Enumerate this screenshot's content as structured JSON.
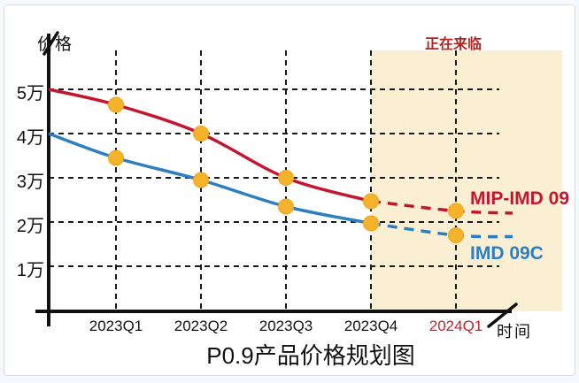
{
  "chart_data": {
    "type": "line",
    "title": "P0.9产品价格规划图",
    "ylabel": "价格",
    "xlabel": "时间",
    "annotation": {
      "text": "正在来临",
      "color": "#b3241f"
    },
    "y_ticks": [
      {
        "label": "5万",
        "value": 5
      },
      {
        "label": "4万",
        "value": 4
      },
      {
        "label": "3万",
        "value": 3
      },
      {
        "label": "2万",
        "value": 2
      },
      {
        "label": "1万",
        "value": 1
      }
    ],
    "ylim": [
      0,
      5.5
    ],
    "categories": [
      {
        "label": "2023Q1",
        "highlight": false
      },
      {
        "label": "2023Q2",
        "highlight": false
      },
      {
        "label": "2023Q3",
        "highlight": false
      },
      {
        "label": "2023Q4",
        "highlight": false
      },
      {
        "label": "2024Q1",
        "highlight": true
      }
    ],
    "highlight_color": "#c1272d",
    "grid": "dashed-black",
    "forecast_region": {
      "start_category": "2023Q4",
      "fill": "#faefd2"
    },
    "series": [
      {
        "name": "MIP-IMD 09",
        "color": "#c4162f",
        "axis_start_value": 5.0,
        "values": [
          4.65,
          4.0,
          3.0,
          2.47,
          2.25
        ],
        "dashed_from_index": 3,
        "tail_value": 2.2
      },
      {
        "name": "IMD 09C",
        "color": "#2e7ec2",
        "axis_start_value": 4.0,
        "values": [
          3.45,
          2.95,
          2.35,
          1.97,
          1.7
        ],
        "dashed_from_index": 3,
        "tail_value": 1.67
      }
    ],
    "marker_color": "#f5b32b",
    "marker_edge_color": "#eba41e"
  }
}
